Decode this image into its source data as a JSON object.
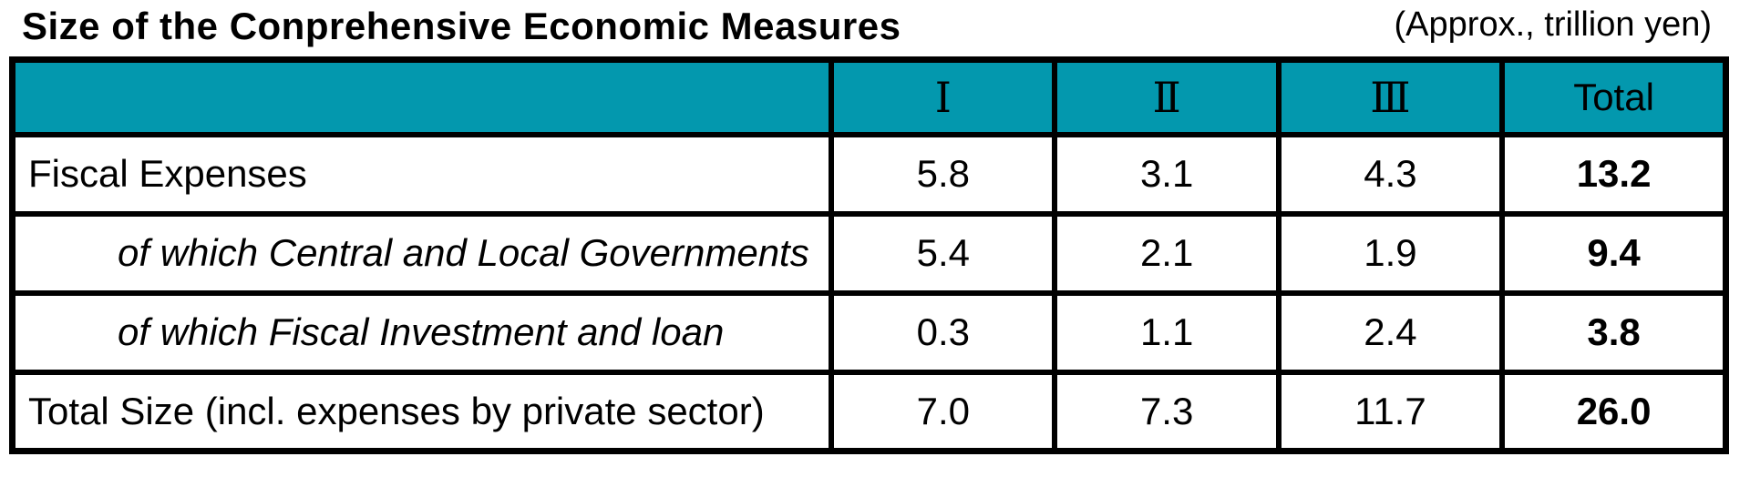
{
  "page": {
    "title": "Size of the Conprehensive Economic Measures",
    "unit_note": "(Approx., trillion yen)"
  },
  "colors": {
    "header_bg": "#0398AE",
    "border": "#000000",
    "text": "#000000"
  },
  "table": {
    "corner_label": "",
    "columns": [
      "Ⅰ",
      "Ⅱ",
      "Ⅲ",
      "Total"
    ],
    "rows": [
      {
        "label": "Fiscal Expenses",
        "values": [
          "5.8",
          "3.1",
          "4.3",
          "13.2"
        ]
      },
      {
        "label": "of which Central and Local Governments",
        "values": [
          "5.4",
          "2.1",
          "1.9",
          "9.4"
        ]
      },
      {
        "label": "of which Fiscal Investment and loan",
        "values": [
          "0.3",
          "1.1",
          "2.4",
          "3.8"
        ]
      },
      {
        "label": "Total Size (incl. expenses by private sector)",
        "values": [
          "7.0",
          "7.3",
          "11.7",
          "26.0"
        ]
      }
    ]
  },
  "chart_data": {
    "type": "table",
    "title": "Size of the Conprehensive Economic Measures",
    "unit": "Approx., trillion yen",
    "columns": [
      "Ⅰ",
      "Ⅱ",
      "Ⅲ",
      "Total"
    ],
    "rows": [
      {
        "label": "Fiscal Expenses",
        "values": [
          5.8,
          3.1,
          4.3,
          13.2
        ]
      },
      {
        "label": "of which Central and Local Governments",
        "values": [
          5.4,
          2.1,
          1.9,
          9.4
        ]
      },
      {
        "label": "of which Fiscal Investment and loan",
        "values": [
          0.3,
          1.1,
          2.4,
          3.8
        ]
      },
      {
        "label": "Total Size (incl. expenses by private sector)",
        "values": [
          7.0,
          7.3,
          11.7,
          26.0
        ]
      }
    ]
  }
}
